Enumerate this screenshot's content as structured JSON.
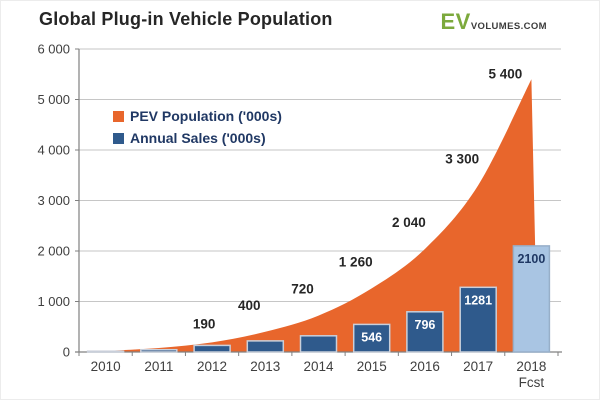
{
  "header": {
    "title": "Global Plug-in Vehicle Population",
    "logo": {
      "ev": "EV",
      "rest": "VOLUMES.COM"
    }
  },
  "legend": {
    "items": [
      {
        "label": "PEV Population ('000s)",
        "color": "#E8662C"
      },
      {
        "label": "Annual Sales ('000s)",
        "color": "#2F5A8C"
      }
    ]
  },
  "chart_data": {
    "type": "area+bar combo",
    "title": "Global Plug-in Vehicle Population",
    "categories": [
      "2010",
      "2011",
      "2012",
      "2013",
      "2014",
      "2015",
      "2016",
      "2017",
      "2018"
    ],
    "forecast_note": "Fcst",
    "forecast_index": 8,
    "series": [
      {
        "name": "PEV Population ('000s)",
        "type": "area",
        "color": "#E8662C",
        "values": [
          20,
          80,
          190,
          400,
          720,
          1260,
          2040,
          3300,
          5400
        ],
        "labels": [
          "",
          "",
          "190",
          "400",
          "720",
          "1 260",
          "2 040",
          "3 300",
          "5 400"
        ]
      },
      {
        "name": "Annual Sales ('000s)",
        "type": "bar",
        "color": "#2F5A8C",
        "bar_border": "#C9CFDA",
        "forecast_color": "#A9C5E3",
        "forecast_border": "#97AFC9",
        "values": [
          15,
          45,
          130,
          220,
          320,
          546,
          796,
          1281,
          2100
        ],
        "labels": [
          "",
          "",
          "",
          "",
          "",
          "546",
          "796",
          "1281",
          "2100"
        ]
      }
    ],
    "ylim": [
      0,
      6000
    ],
    "yticks": [
      {
        "value": 0,
        "label": "0"
      },
      {
        "value": 1000,
        "label": "1 000"
      },
      {
        "value": 2000,
        "label": "2 000"
      },
      {
        "value": 3000,
        "label": "3 000"
      },
      {
        "value": 4000,
        "label": "4 000"
      },
      {
        "value": 5000,
        "label": "5 000"
      },
      {
        "value": 6000,
        "label": "6 000"
      }
    ],
    "grid": true,
    "legend_position": "top-left-inside",
    "colors": {
      "grid": "#C6C6C6",
      "axis": "#808080",
      "tick_label": "#3F3F3F",
      "point_label": "#262626",
      "bar_label": "#FFFFFF",
      "forecast_bar_label": "#1F3864"
    }
  }
}
